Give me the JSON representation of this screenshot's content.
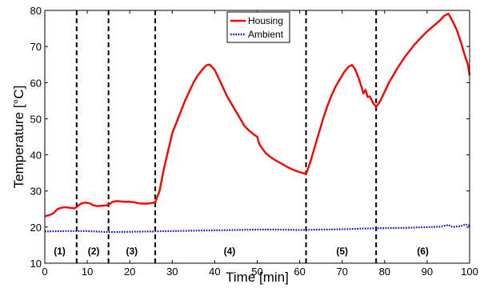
{
  "chart_data": {
    "type": "line",
    "xlabel": "Time [min]",
    "ylabel": "Temperature [°C]",
    "xlim": [
      0,
      100
    ],
    "ylim": [
      10,
      80
    ],
    "xticks": [
      0,
      10,
      20,
      30,
      40,
      50,
      60,
      70,
      80,
      90,
      100
    ],
    "yticks": [
      10,
      20,
      30,
      40,
      50,
      60,
      70,
      80
    ],
    "grid": false,
    "legend_position": "top-center",
    "phase_boundaries": [
      7.5,
      15,
      26,
      61.5,
      78
    ],
    "phases": [
      {
        "label": "(1)",
        "x": 3.5
      },
      {
        "label": "(2)",
        "x": 11.5
      },
      {
        "label": "(3)",
        "x": 20.5
      },
      {
        "label": "(4)",
        "x": 43.5
      },
      {
        "label": "(5)",
        "x": 70
      },
      {
        "label": "(6)",
        "x": 89
      }
    ],
    "series": [
      {
        "name": "Housing",
        "color": "#ff0000",
        "style": "solid",
        "points": [
          [
            0,
            23.0
          ],
          [
            1,
            23.3
          ],
          [
            2,
            23.8
          ],
          [
            3,
            25.0
          ],
          [
            4,
            25.4
          ],
          [
            5,
            25.5
          ],
          [
            6,
            25.3
          ],
          [
            7,
            25.2
          ],
          [
            7.5,
            25.6
          ],
          [
            8.5,
            26.5
          ],
          [
            9.5,
            26.8
          ],
          [
            10.5,
            26.6
          ],
          [
            11.5,
            26.0
          ],
          [
            12.5,
            25.8
          ],
          [
            13.5,
            25.9
          ],
          [
            14.5,
            26.0
          ],
          [
            15,
            26.2
          ],
          [
            16,
            27.0
          ],
          [
            17,
            27.2
          ],
          [
            18,
            27.1
          ],
          [
            19,
            27.0
          ],
          [
            20,
            27.0
          ],
          [
            21,
            26.9
          ],
          [
            22,
            26.6
          ],
          [
            23,
            26.5
          ],
          [
            24,
            26.5
          ],
          [
            25,
            26.6
          ],
          [
            26,
            26.9
          ],
          [
            27,
            30.0
          ],
          [
            28,
            36.0
          ],
          [
            29,
            41.0
          ],
          [
            30,
            46.0
          ],
          [
            31,
            49.0
          ],
          [
            32,
            52.0
          ],
          [
            33,
            55.0
          ],
          [
            34,
            57.5
          ],
          [
            35,
            60.0
          ],
          [
            36,
            62.0
          ],
          [
            37,
            63.5
          ],
          [
            38,
            64.8
          ],
          [
            38.8,
            65.0
          ],
          [
            40,
            63.5
          ],
          [
            41,
            61.0
          ],
          [
            42,
            58.5
          ],
          [
            43,
            56.0
          ],
          [
            44,
            54.0
          ],
          [
            45,
            52.0
          ],
          [
            46,
            50.0
          ],
          [
            47,
            48.0
          ],
          [
            48,
            46.8
          ],
          [
            49,
            45.8
          ],
          [
            50,
            45.0
          ],
          [
            50.5,
            43.0
          ],
          [
            51,
            42.0
          ],
          [
            52,
            40.5
          ],
          [
            53,
            39.5
          ],
          [
            54,
            38.7
          ],
          [
            55,
            38.0
          ],
          [
            56,
            37.4
          ],
          [
            57,
            36.7
          ],
          [
            58,
            36.1
          ],
          [
            59,
            35.6
          ],
          [
            60,
            35.2
          ],
          [
            61,
            34.9
          ],
          [
            61.5,
            34.7
          ],
          [
            62.5,
            38.0
          ],
          [
            63.5,
            42.0
          ],
          [
            64.5,
            46.0
          ],
          [
            65.5,
            50.0
          ],
          [
            66.5,
            53.5
          ],
          [
            67.5,
            56.5
          ],
          [
            68.5,
            59.0
          ],
          [
            69.5,
            61.0
          ],
          [
            70.5,
            63.0
          ],
          [
            71.5,
            64.4
          ],
          [
            72.3,
            64.9
          ],
          [
            73,
            63.8
          ],
          [
            73.8,
            61.5
          ],
          [
            74.5,
            59.0
          ],
          [
            75,
            57.0
          ],
          [
            75.5,
            58.0
          ],
          [
            76,
            56.0
          ],
          [
            76.5,
            56.2
          ],
          [
            77,
            55.0
          ],
          [
            77.5,
            54.0
          ],
          [
            78,
            53.3
          ],
          [
            79,
            55.0
          ],
          [
            80,
            57.5
          ],
          [
            81,
            60.0
          ],
          [
            82,
            62.0
          ],
          [
            83,
            64.0
          ],
          [
            84,
            65.8
          ],
          [
            85,
            67.5
          ],
          [
            86,
            69.0
          ],
          [
            87,
            70.5
          ],
          [
            88,
            71.8
          ],
          [
            89,
            73.0
          ],
          [
            90,
            74.2
          ],
          [
            91,
            75.2
          ],
          [
            92,
            76.2
          ],
          [
            93,
            77.2
          ],
          [
            94,
            78.5
          ],
          [
            95,
            79.1
          ],
          [
            96,
            77.0
          ],
          [
            97,
            74.5
          ],
          [
            98,
            71.0
          ],
          [
            99,
            67.0
          ],
          [
            99.6,
            65.0
          ],
          [
            100,
            62.0
          ]
        ]
      },
      {
        "name": "Ambient",
        "color": "#0000ff",
        "style": "dotted",
        "points": [
          [
            0,
            18.8
          ],
          [
            5,
            18.9
          ],
          [
            10,
            18.9
          ],
          [
            15,
            18.6
          ],
          [
            20,
            18.7
          ],
          [
            25,
            18.8
          ],
          [
            30,
            18.9
          ],
          [
            35,
            19.0
          ],
          [
            40,
            19.1
          ],
          [
            45,
            19.2
          ],
          [
            50,
            19.3
          ],
          [
            55,
            19.3
          ],
          [
            60,
            19.2
          ],
          [
            65,
            19.3
          ],
          [
            70,
            19.4
          ],
          [
            75,
            19.6
          ],
          [
            80,
            19.7
          ],
          [
            85,
            19.8
          ],
          [
            90,
            20.0
          ],
          [
            93,
            20.1
          ],
          [
            95,
            20.6
          ],
          [
            96,
            20.0
          ],
          [
            98,
            20.3
          ],
          [
            99,
            20.8
          ],
          [
            100,
            20.4
          ]
        ]
      }
    ]
  }
}
